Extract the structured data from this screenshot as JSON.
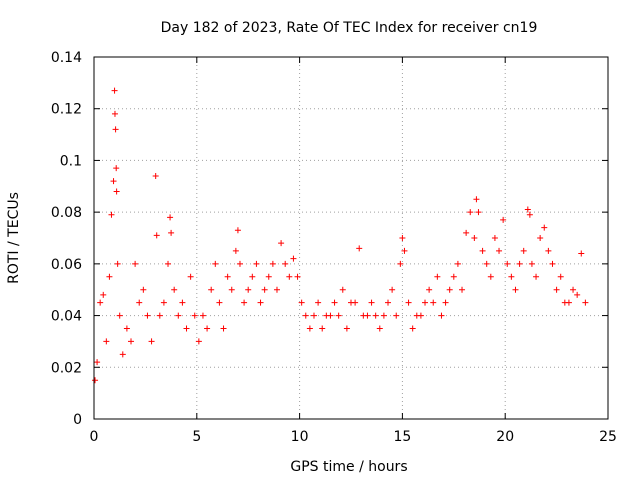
{
  "chart_data": {
    "type": "scatter",
    "title": "Day 182 of 2023, Rate Of TEC Index for receiver cn19",
    "xlabel": "GPS time / hours",
    "ylabel": "ROTI / TECUs",
    "xlim": [
      0,
      25
    ],
    "ylim": [
      0,
      0.14
    ],
    "xticks": [
      0,
      5,
      10,
      15,
      20,
      25
    ],
    "xtick_labels": [
      "0",
      "5",
      "10",
      "15",
      "20",
      "25"
    ],
    "yticks": [
      0,
      0.02,
      0.04,
      0.06,
      0.08,
      0.1,
      0.12,
      0.14
    ],
    "ytick_labels": [
      "0",
      "0.02",
      "0.04",
      "0.06",
      "0.08",
      "0.1",
      "0.12",
      "0.14"
    ],
    "grid": true,
    "marker": "+",
    "color": "#ff0000",
    "series": [
      {
        "name": "ROTI",
        "x": [
          0.05,
          0.15,
          0.3,
          0.45,
          0.6,
          0.75,
          0.85,
          0.95,
          1.0,
          1.02,
          1.05,
          1.08,
          1.1,
          1.15,
          1.25,
          1.4,
          1.6,
          1.8,
          2.0,
          2.2,
          2.4,
          2.6,
          2.8,
          3.0,
          3.05,
          3.2,
          3.4,
          3.6,
          3.7,
          3.75,
          3.9,
          4.1,
          4.3,
          4.5,
          4.7,
          4.9,
          5.1,
          5.3,
          5.5,
          5.7,
          5.9,
          6.1,
          6.3,
          6.5,
          6.7,
          6.9,
          7.0,
          7.1,
          7.3,
          7.5,
          7.7,
          7.9,
          8.1,
          8.3,
          8.5,
          8.7,
          8.9,
          9.1,
          9.3,
          9.5,
          9.7,
          9.9,
          10.1,
          10.3,
          10.5,
          10.7,
          10.9,
          11.1,
          11.3,
          11.5,
          11.7,
          11.9,
          12.1,
          12.3,
          12.5,
          12.7,
          12.9,
          13.1,
          13.3,
          13.5,
          13.7,
          13.9,
          14.1,
          14.3,
          14.5,
          14.7,
          14.9,
          15.0,
          15.1,
          15.3,
          15.5,
          15.7,
          15.9,
          16.1,
          16.3,
          16.5,
          16.7,
          16.9,
          17.1,
          17.3,
          17.5,
          17.7,
          17.9,
          18.1,
          18.3,
          18.5,
          18.6,
          18.7,
          18.9,
          19.1,
          19.3,
          19.5,
          19.7,
          19.9,
          20.1,
          20.3,
          20.5,
          20.7,
          20.9,
          21.1,
          21.2,
          21.3,
          21.5,
          21.7,
          21.9,
          22.1,
          22.3,
          22.5,
          22.7,
          22.9,
          23.1,
          23.3,
          23.5,
          23.7,
          23.9
        ],
        "y": [
          0.015,
          0.022,
          0.045,
          0.048,
          0.03,
          0.055,
          0.079,
          0.092,
          0.127,
          0.118,
          0.112,
          0.097,
          0.088,
          0.06,
          0.04,
          0.025,
          0.035,
          0.03,
          0.06,
          0.045,
          0.05,
          0.04,
          0.03,
          0.094,
          0.071,
          0.04,
          0.045,
          0.06,
          0.078,
          0.072,
          0.05,
          0.04,
          0.045,
          0.035,
          0.055,
          0.04,
          0.03,
          0.04,
          0.035,
          0.05,
          0.06,
          0.045,
          0.035,
          0.055,
          0.05,
          0.065,
          0.073,
          0.06,
          0.045,
          0.05,
          0.055,
          0.06,
          0.045,
          0.05,
          0.055,
          0.06,
          0.05,
          0.068,
          0.06,
          0.055,
          0.062,
          0.055,
          0.045,
          0.04,
          0.035,
          0.04,
          0.045,
          0.035,
          0.04,
          0.04,
          0.045,
          0.04,
          0.05,
          0.035,
          0.045,
          0.045,
          0.066,
          0.04,
          0.04,
          0.045,
          0.04,
          0.035,
          0.04,
          0.045,
          0.05,
          0.04,
          0.06,
          0.07,
          0.065,
          0.045,
          0.035,
          0.04,
          0.04,
          0.045,
          0.05,
          0.045,
          0.055,
          0.04,
          0.045,
          0.05,
          0.055,
          0.06,
          0.05,
          0.072,
          0.08,
          0.07,
          0.085,
          0.08,
          0.065,
          0.06,
          0.055,
          0.07,
          0.065,
          0.077,
          0.06,
          0.055,
          0.05,
          0.06,
          0.065,
          0.081,
          0.079,
          0.06,
          0.055,
          0.07,
          0.074,
          0.065,
          0.06,
          0.05,
          0.055,
          0.045,
          0.045,
          0.05,
          0.048,
          0.064,
          0.045
        ]
      }
    ]
  }
}
